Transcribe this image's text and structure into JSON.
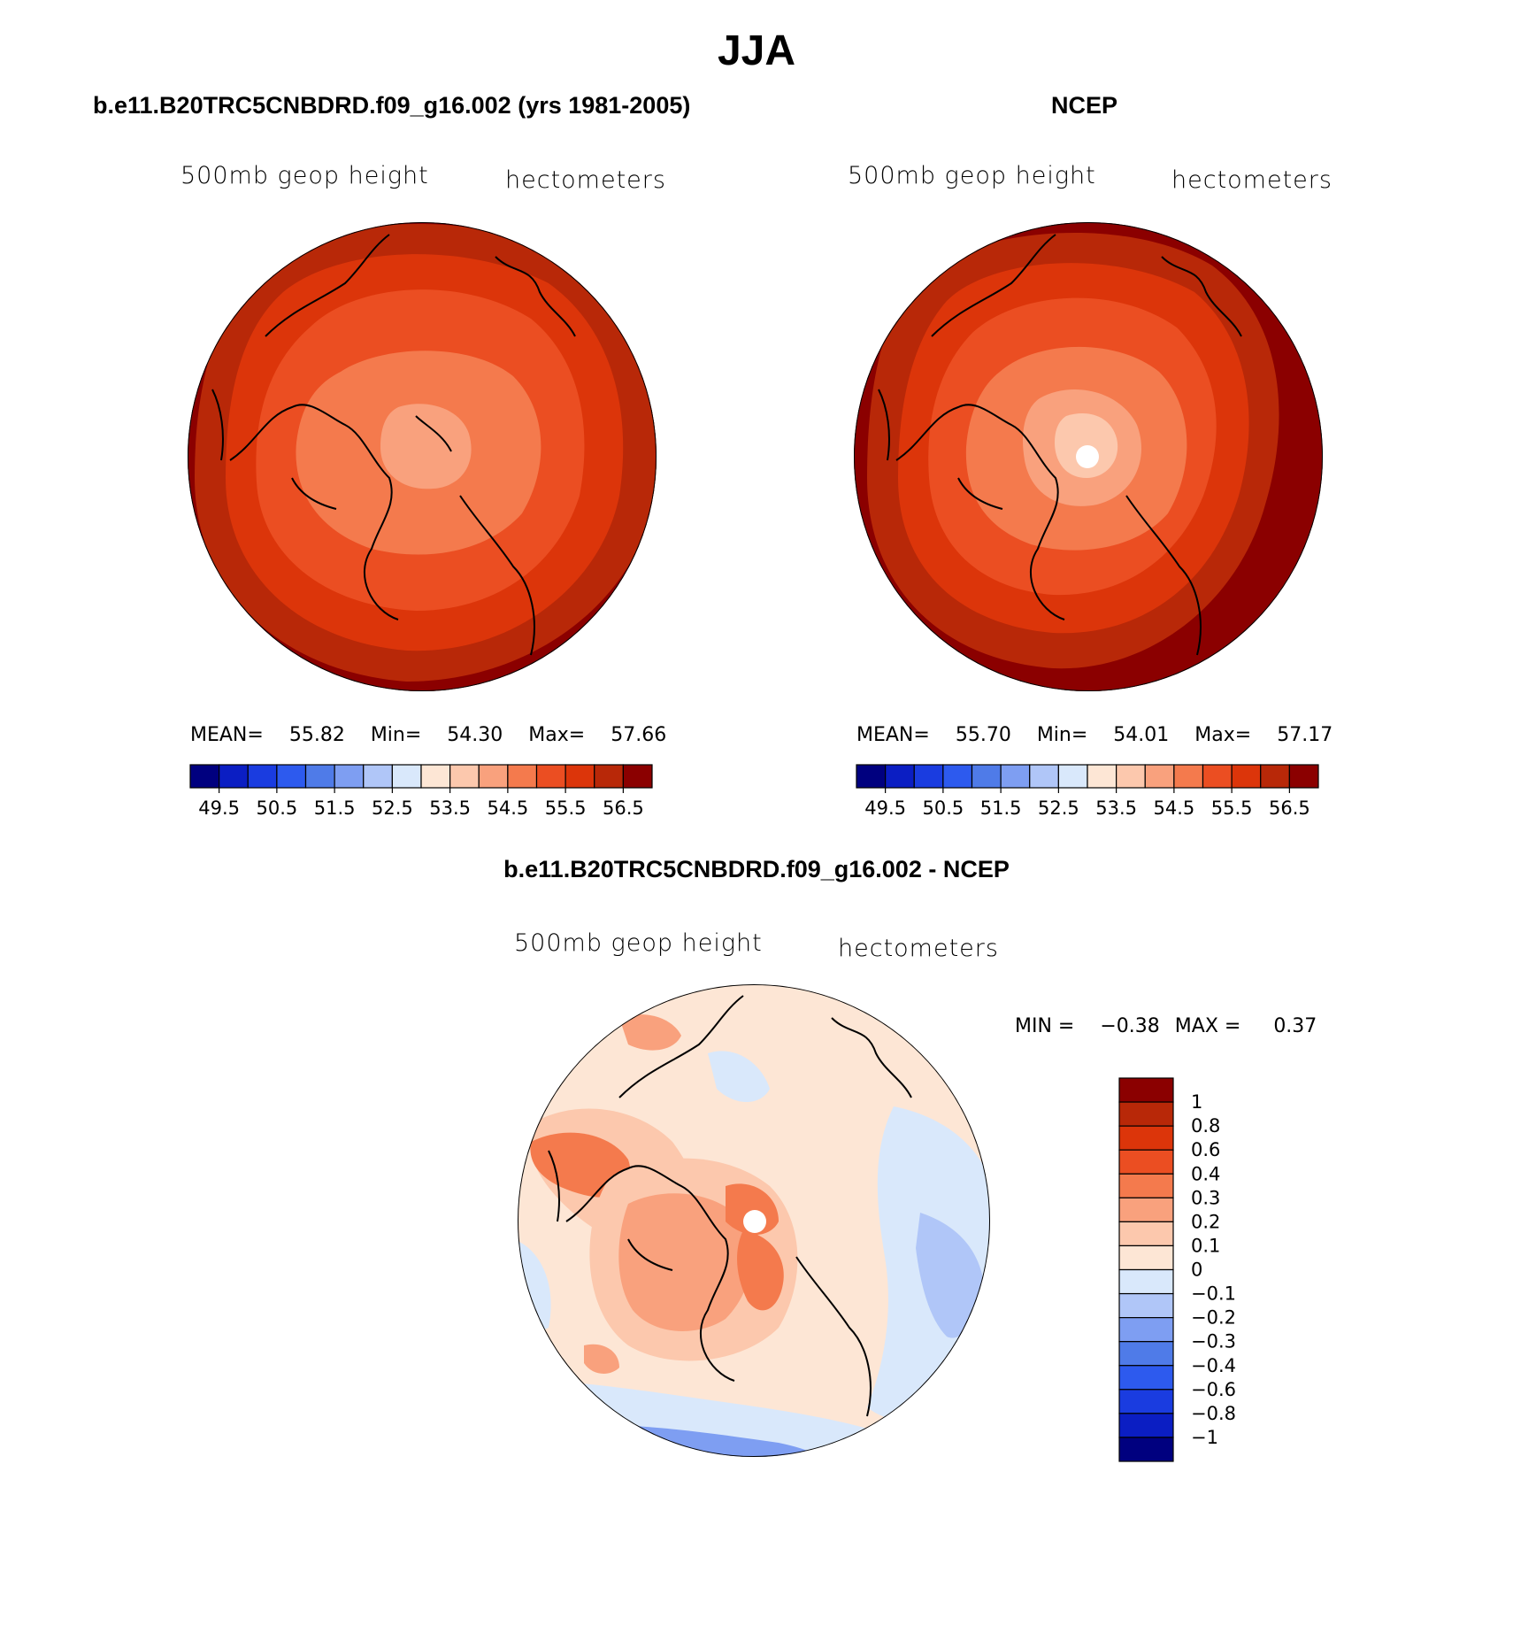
{
  "title": "JJA",
  "panels": {
    "model": {
      "title": "b.e11.B20TRC5CNBDRD.f09_g16.002 (yrs 1981-2005)",
      "left_label": "500mb  geop  height",
      "right_label": "hectometers",
      "mean_label": "MEAN=",
      "mean": "55.82",
      "min_label": "Min=",
      "min": "54.30",
      "max_label": "Max=",
      "max": "57.66"
    },
    "obs": {
      "title": "NCEP",
      "left_label": "500mb  geop  height",
      "right_label": "hectometers",
      "mean_label": "MEAN=",
      "mean": "55.70",
      "min_label": "Min=",
      "min": "54.01",
      "max_label": "Max=",
      "max": "57.17"
    },
    "diff": {
      "title": "b.e11.B20TRC5CNBDRD.f09_g16.002 - NCEP",
      "left_label": "500mb  geop  height",
      "right_label": "hectometers",
      "min_label": "MIN =",
      "min": "−0.38",
      "max_label": "MAX =",
      "max": "0.37"
    }
  },
  "colorbars": {
    "abs_ticks": [
      "49.5",
      "50.5",
      "51.5",
      "52.5",
      "53.5",
      "54.5",
      "55.5",
      "56.5"
    ],
    "abs_colors": [
      "#00007f",
      "#0b1ec3",
      "#1a3ce0",
      "#2d5aee",
      "#4f7be8",
      "#7e9ef2",
      "#b0c6f8",
      "#d9e8fb",
      "#fde6d5",
      "#fcc8ad",
      "#f9a17d",
      "#f47a4d",
      "#eb4e22",
      "#dc350a",
      "#b82808",
      "#8b0000"
    ],
    "diff_ticks": [
      "1",
      "0.8",
      "0.6",
      "0.4",
      "0.3",
      "0.2",
      "0.1",
      "0",
      "−0.1",
      "−0.2",
      "−0.3",
      "−0.4",
      "−0.6",
      "−0.8",
      "−1"
    ],
    "diff_colors": [
      "#8b0000",
      "#b82808",
      "#dc350a",
      "#eb4e22",
      "#f47a4d",
      "#f9a17d",
      "#fcc8ad",
      "#fde6d5",
      "#d9e8fb",
      "#b0c6f8",
      "#7e9ef2",
      "#4f7be8",
      "#2d5aee",
      "#1a3ce0",
      "#0b1ec3",
      "#00007f"
    ]
  }
}
